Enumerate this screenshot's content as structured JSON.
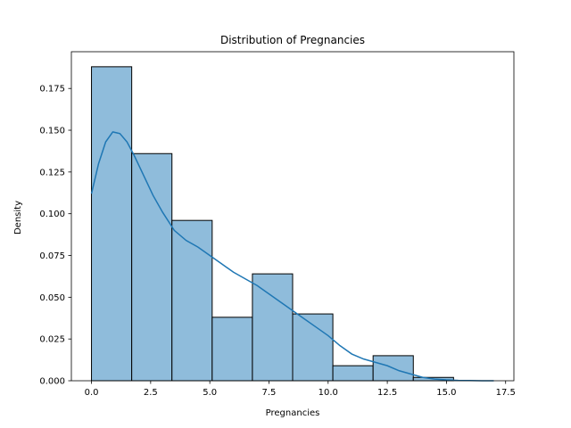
{
  "chart_data": {
    "type": "bar",
    "title": "Distribution of Pregnancies",
    "xlabel": "Pregnancies",
    "ylabel": "Density",
    "xlim": [
      -0.85,
      17.85
    ],
    "ylim": [
      0,
      0.197
    ],
    "xticks": [
      0.0,
      2.5,
      5.0,
      7.5,
      10.0,
      12.5,
      15.0,
      17.5
    ],
    "xtick_labels": [
      "0.0",
      "2.5",
      "5.0",
      "7.5",
      "10.0",
      "12.5",
      "15.0",
      "17.5"
    ],
    "yticks": [
      0.0,
      0.025,
      0.05,
      0.075,
      0.1,
      0.125,
      0.15,
      0.175
    ],
    "ytick_labels": [
      "0.000",
      "0.025",
      "0.050",
      "0.075",
      "0.100",
      "0.125",
      "0.150",
      "0.175"
    ],
    "bins": [
      {
        "x0": 0.0,
        "x1": 1.7,
        "density": 0.188
      },
      {
        "x0": 1.7,
        "x1": 3.4,
        "density": 0.136
      },
      {
        "x0": 3.4,
        "x1": 5.1,
        "density": 0.096
      },
      {
        "x0": 5.1,
        "x1": 6.8,
        "density": 0.038
      },
      {
        "x0": 6.8,
        "x1": 8.5,
        "density": 0.064
      },
      {
        "x0": 8.5,
        "x1": 10.2,
        "density": 0.04
      },
      {
        "x0": 10.2,
        "x1": 11.9,
        "density": 0.009
      },
      {
        "x0": 11.9,
        "x1": 13.6,
        "density": 0.015
      },
      {
        "x0": 13.6,
        "x1": 15.3,
        "density": 0.002
      }
    ],
    "kde": {
      "x": [
        0.0,
        0.3,
        0.6,
        0.9,
        1.2,
        1.5,
        1.8,
        2.2,
        2.6,
        3.0,
        3.5,
        4.0,
        4.5,
        5.0,
        5.5,
        6.0,
        6.5,
        7.0,
        7.5,
        8.0,
        8.5,
        9.0,
        9.5,
        10.0,
        10.5,
        11.0,
        11.5,
        12.0,
        12.5,
        13.0,
        13.5,
        14.0,
        14.5,
        15.0,
        15.5,
        16.0,
        16.5,
        17.0
      ],
      "y": [
        0.112,
        0.13,
        0.143,
        0.149,
        0.148,
        0.143,
        0.135,
        0.123,
        0.111,
        0.101,
        0.09,
        0.084,
        0.08,
        0.075,
        0.07,
        0.065,
        0.061,
        0.057,
        0.052,
        0.047,
        0.042,
        0.037,
        0.032,
        0.027,
        0.021,
        0.016,
        0.013,
        0.011,
        0.009,
        0.006,
        0.004,
        0.002,
        0.001,
        0.0005,
        0.0002,
        0.0001,
        0.0,
        0.0
      ]
    },
    "grid": false,
    "colors": {
      "bar_fill": "#8fbcdb",
      "bar_edge": "#000000",
      "kde_line": "#1f77b4"
    }
  }
}
